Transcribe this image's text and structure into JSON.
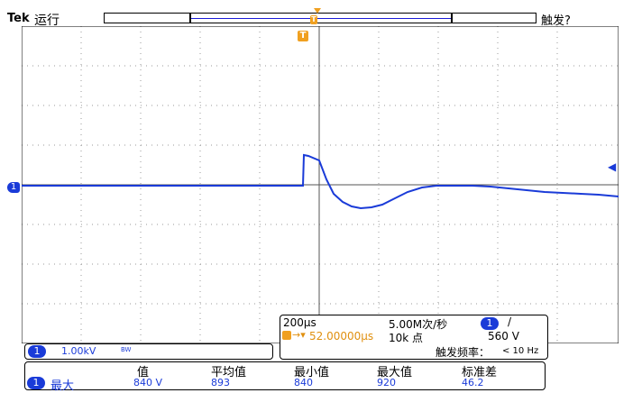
{
  "header": {
    "brand": "Tek",
    "run_state": "运行",
    "trigger_status": "触发?"
  },
  "trigger_marker": "T",
  "ch1_marker": "1",
  "horizontal": {
    "time_div": "200µs",
    "sample_rate": "5.00M次/秒",
    "trigger_channel": "1",
    "trigger_slope": "/",
    "delay_value": "52.00000µs",
    "record_length": "10k 点",
    "trigger_level": "560 V",
    "trigger_freq_label": "触发频率：",
    "trigger_freq_value": "< 10 Hz"
  },
  "channel": {
    "number": "1",
    "scale": "1.00kV",
    "bw_icon": "bandwidth-limit-icon",
    "bw_glyph": "BW"
  },
  "measurements": {
    "headers": [
      "值",
      "平均值",
      "最小值",
      "最大值",
      "标准差"
    ],
    "rows": [
      {
        "channel": "1",
        "name": "最大",
        "values": [
          "840 V",
          "893",
          "840",
          "920",
          "46.2"
        ]
      }
    ]
  },
  "colors": {
    "ch1": "#1a3bd8",
    "trigger": "#f0a020"
  }
}
